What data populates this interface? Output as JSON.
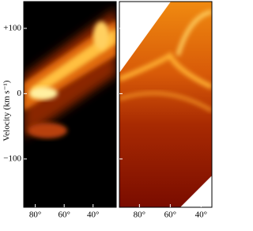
{
  "chart_data": [
    {
      "type": "pv-diagram",
      "ylabel": "Velocity (km s⁻¹)",
      "xlim": [
        88,
        24
      ],
      "xticks": [
        {
          "value": 80,
          "label": "80°"
        },
        {
          "value": 60,
          "label": "60°"
        },
        {
          "value": 40,
          "label": "40°"
        }
      ],
      "ylim": [
        -174,
        141
      ],
      "yticks": [
        {
          "value": 100,
          "label": "+100"
        },
        0,
        {
          "value": -100,
          "label": "−100"
        }
      ]
    },
    {
      "type": "pv-diagram",
      "xlim": [
        93,
        33
      ],
      "xticks": [
        {
          "value": 80,
          "label": "80°"
        },
        {
          "value": 60,
          "label": "60°"
        },
        {
          "value": 40,
          "label": "40°"
        }
      ],
      "ylim": [
        -174,
        141
      ],
      "yticks": [
        {
          "value": 100
        },
        {
          "value": 0
        },
        {
          "value": -100
        }
      ]
    }
  ]
}
